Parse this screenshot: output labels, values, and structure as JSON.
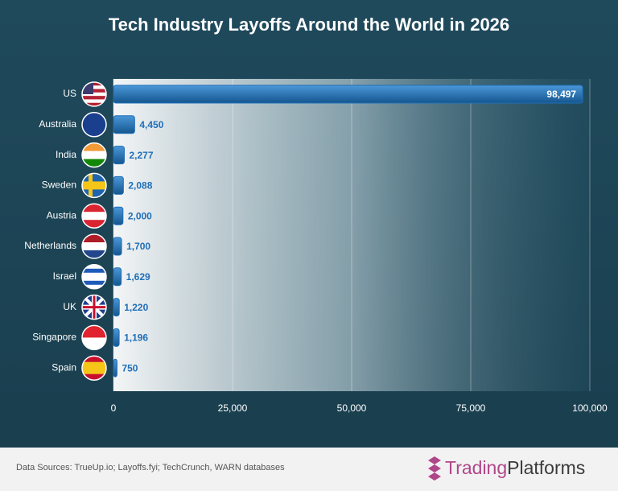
{
  "chart_data": {
    "type": "hbar",
    "title": "Tech Industry Layoffs Around the World in 2026",
    "categories": [
      "US",
      "Australia",
      "India",
      "Sweden",
      "Austria",
      "Netherlands",
      "Israel",
      "UK",
      "Singapore",
      "Spain"
    ],
    "values": [
      98497,
      4450,
      2277,
      2088,
      2000,
      1700,
      1629,
      1220,
      1196,
      750
    ],
    "value_labels": [
      "98,497",
      "4,450",
      "2,277",
      "2,088",
      "2,000",
      "1,700",
      "1,629",
      "1,220",
      "1,196",
      "750"
    ],
    "color": "#1f6fb8",
    "xlim": [
      0,
      100000
    ],
    "xticks": [
      0,
      {
        "value": 25000,
        "label": "25,000"
      },
      {
        "value": 50000,
        "label": "50,000"
      },
      {
        "value": 75000,
        "label": "75,000"
      },
      {
        "value": 100000,
        "label": "100,000"
      }
    ],
    "grid": true
  },
  "footer": {
    "source": "Data Sources: TrueUp.io; Layoffs.fyi; TechCrunch, WARN databases",
    "logo_part1": "Trading",
    "logo_part2": "Platforms"
  }
}
